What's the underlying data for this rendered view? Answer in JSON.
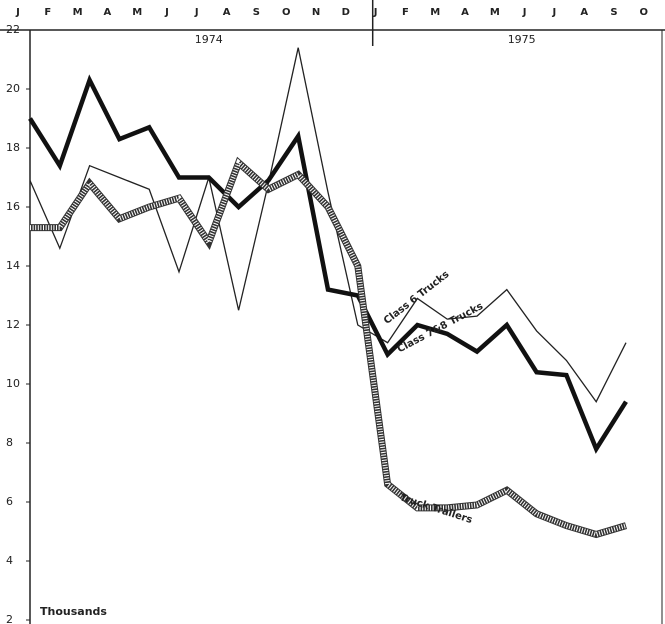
{
  "chart_data": {
    "type": "line",
    "categories": [
      "J",
      "F",
      "M",
      "A",
      "M",
      "J",
      "J",
      "A",
      "S",
      "O",
      "N",
      "D",
      "J",
      "F",
      "M",
      "A",
      "M",
      "J",
      "J",
      "A",
      "S",
      "O"
    ],
    "years": [
      "1974",
      "1975"
    ],
    "y_unit_label": "Thousands",
    "ylim": [
      2,
      22
    ],
    "yticks": [
      2,
      4,
      6,
      8,
      10,
      12,
      14,
      16,
      18,
      20,
      22
    ],
    "series": [
      {
        "name": "Class 6 Trucks",
        "color": "#222222",
        "style": "thin",
        "values": [
          16.9,
          14.6,
          17.4,
          17.0,
          16.6,
          13.8,
          17.0,
          12.5,
          16.8,
          21.4,
          16.5,
          12.0,
          11.4,
          12.9,
          12.2,
          12.3,
          13.2,
          11.8,
          10.8,
          9.4,
          11.4,
          null
        ]
      },
      {
        "name": "Class 7&8 Trucks",
        "color": "#111111",
        "style": "thick",
        "values": [
          19.0,
          17.4,
          20.3,
          18.3,
          18.7,
          17.0,
          17.0,
          16.0,
          16.9,
          18.4,
          13.2,
          13.0,
          11.0,
          12.0,
          11.7,
          11.1,
          12.0,
          10.4,
          10.3,
          7.8,
          9.4,
          null
        ]
      },
      {
        "name": "Truck Trailers",
        "color": "#333333",
        "style": "hatched",
        "values": [
          15.3,
          15.3,
          16.8,
          15.6,
          16.0,
          16.3,
          14.8,
          17.5,
          16.6,
          17.1,
          16.0,
          14.0,
          6.6,
          5.8,
          5.8,
          5.9,
          6.4,
          5.6,
          5.2,
          4.9,
          5.2,
          null
        ]
      }
    ]
  }
}
